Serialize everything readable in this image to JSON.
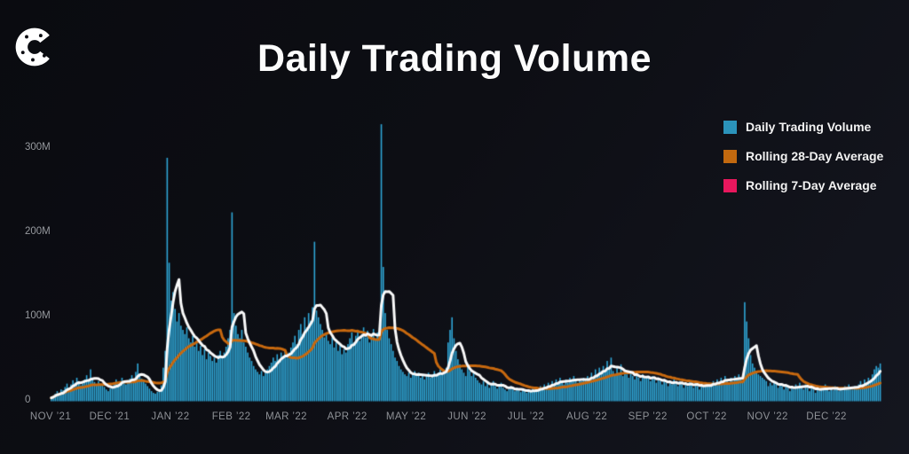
{
  "logo": {
    "name": "coindesk-c-logo",
    "color": "#ffffff"
  },
  "chart_data": {
    "type": "bar",
    "title": "Daily Trading Volume",
    "xlabel": "",
    "ylabel": "",
    "unit": "M",
    "ylim": [
      0,
      340
    ],
    "grid": false,
    "legend_position": "top-right",
    "x_range": [
      "NOV ’21",
      "DEC ’22"
    ],
    "y_ticks": [
      {
        "label": "0",
        "value": 0
      },
      {
        "label": "100M",
        "value": 100
      },
      {
        "label": "200M",
        "value": 200
      },
      {
        "label": "300M",
        "value": 300
      }
    ],
    "x_ticks": [
      {
        "label": "NOV ’21",
        "day": 0
      },
      {
        "label": "DEC ’21",
        "day": 30
      },
      {
        "label": "JAN ’22",
        "day": 61
      },
      {
        "label": "FEB ’22",
        "day": 92
      },
      {
        "label": "MAR ’22",
        "day": 120
      },
      {
        "label": "APR ’22",
        "day": 151
      },
      {
        "label": "MAY ’22",
        "day": 181
      },
      {
        "label": "JUN ’22",
        "day": 212
      },
      {
        "label": "JUL ’22",
        "day": 242
      },
      {
        "label": "AUG ’22",
        "day": 273
      },
      {
        "label": "SEP ’22",
        "day": 304
      },
      {
        "label": "OCT ’22",
        "day": 334
      },
      {
        "label": "NOV ’22",
        "day": 365
      },
      {
        "label": "DEC ’22",
        "day": 395
      }
    ],
    "legend": [
      {
        "label": "Daily Trading Volume",
        "swatch": "#2B93BA"
      },
      {
        "label": "Rolling 28-Day Average",
        "swatch": "#C2690F"
      },
      {
        "label": "Rolling 7-Day Average",
        "swatch": "#E8175D"
      }
    ],
    "series": [
      {
        "name": "Daily Trading Volume",
        "type": "bar",
        "color": "#2FA6D6",
        "values_unit": "millions",
        "values": [
          4,
          6,
          9,
          12,
          10,
          14,
          13,
          17,
          21,
          16,
          20,
          25,
          22,
          28,
          24,
          19,
          21,
          26,
          31,
          24,
          38,
          28,
          23,
          20,
          24,
          21,
          19,
          17,
          14,
          12,
          15,
          18,
          22,
          26,
          21,
          24,
          28,
          24,
          20,
          23,
          27,
          31,
          26,
          35,
          45,
          33,
          27,
          24,
          21,
          18,
          15,
          12,
          10,
          9,
          11,
          14,
          19,
          40,
          60,
          290,
          165,
          120,
          130,
          110,
          95,
          105,
          90,
          85,
          80,
          88,
          75,
          70,
          78,
          65,
          72,
          60,
          66,
          55,
          62,
          50,
          58,
          54,
          48,
          52,
          46,
          55,
          60,
          52,
          58,
          65,
          75,
          85,
          225,
          105,
          90,
          80,
          75,
          85,
          70,
          65,
          58,
          52,
          48,
          42,
          38,
          35,
          32,
          36,
          30,
          34,
          38,
          42,
          46,
          52,
          48,
          56,
          50,
          58,
          54,
          60,
          52,
          58,
          64,
          70,
          78,
          68,
          85,
          92,
          80,
          100,
          88,
          105,
          96,
          112,
          190,
          108,
          100,
          92,
          85,
          76,
          80,
          72,
          68,
          76,
          64,
          70,
          60,
          66,
          56,
          62,
          58,
          68,
          75,
          82,
          70,
          78,
          85,
          72,
          80,
          88,
          76,
          84,
          70,
          78,
          86,
          74,
          82,
          78,
          330,
          160,
          105,
          85,
          75,
          68,
          60,
          52,
          48,
          42,
          38,
          35,
          32,
          30,
          34,
          28,
          32,
          36,
          30,
          34,
          28,
          32,
          26,
          30,
          34,
          28,
          32,
          36,
          30,
          34,
          38,
          32,
          36,
          40,
          70,
          85,
          100,
          75,
          60,
          50,
          44,
          38,
          34,
          30,
          42,
          36,
          30,
          34,
          28,
          25,
          22,
          20,
          24,
          18,
          22,
          16,
          20,
          24,
          18,
          15,
          18,
          22,
          16,
          14,
          12,
          15,
          18,
          14,
          12,
          16,
          13,
          11,
          14,
          12,
          10,
          13,
          11,
          15,
          12,
          16,
          14,
          18,
          15,
          20,
          17,
          22,
          18,
          24,
          20,
          26,
          22,
          28,
          24,
          20,
          26,
          22,
          28,
          25,
          30,
          26,
          22,
          27,
          24,
          28,
          25,
          30,
          26,
          34,
          28,
          38,
          32,
          40,
          36,
          42,
          36,
          48,
          40,
          52,
          36,
          32,
          40,
          34,
          44,
          30,
          38,
          32,
          28,
          36,
          30,
          26,
          34,
          28,
          24,
          32,
          27,
          30,
          28,
          24,
          30,
          26,
          22,
          28,
          24,
          20,
          26,
          22,
          18,
          24,
          20,
          26,
          22,
          18,
          24,
          20,
          16,
          22,
          18,
          24,
          20,
          16,
          22,
          18,
          14,
          20,
          17,
          22,
          18,
          22,
          19,
          24,
          20,
          26,
          22,
          28,
          24,
          30,
          26,
          22,
          28,
          24,
          30,
          26,
          32,
          28,
          24,
          118,
          95,
          75,
          55,
          45,
          40,
          36,
          32,
          30,
          28,
          26,
          24,
          18,
          22,
          19,
          24,
          20,
          16,
          21,
          18,
          14,
          20,
          16,
          12,
          18,
          14,
          20,
          16,
          22,
          18,
          14,
          20,
          16,
          12,
          18,
          14,
          10,
          16,
          12,
          18,
          14,
          20,
          14,
          12,
          16,
          13,
          18,
          15,
          12,
          16,
          13,
          18,
          15,
          20,
          17,
          14,
          18,
          15,
          20,
          24,
          20,
          26,
          22,
          28,
          25,
          32,
          38,
          42,
          40,
          45
        ]
      },
      {
        "name": "Rolling 28-Day Average",
        "type": "line",
        "window": 28,
        "color": "#C8690F",
        "source": "rolling mean of Daily Trading Volume"
      },
      {
        "name": "Rolling 7-Day Average",
        "type": "line",
        "window": 7,
        "color": "#FAFAFA",
        "source": "rolling mean of Daily Trading Volume"
      }
    ]
  }
}
